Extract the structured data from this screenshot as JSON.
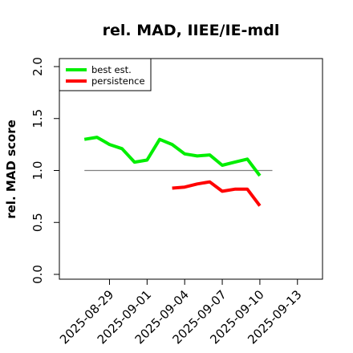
{
  "chart_data": {
    "type": "line",
    "title": "rel. MAD, IIEE/IE-mdl",
    "xlabel": "",
    "ylabel": "rel. MAD score",
    "xlim": [
      "2025-08-25",
      "2025-09-15"
    ],
    "ylim": [
      0.0,
      2.0
    ],
    "xticks": [
      "2025-08-29",
      "2025-09-01",
      "2025-09-04",
      "2025-09-07",
      "2025-09-10",
      "2025-09-13"
    ],
    "yticks": [
      "0.0",
      "0.5",
      "1.0",
      "1.5",
      "2.0"
    ],
    "grid": false,
    "legend_position": "top-left",
    "reference_line": {
      "y": 1.0,
      "x_from": "2025-08-27",
      "x_to": "2025-09-11",
      "color": "#808080"
    },
    "series": [
      {
        "name": "best est.",
        "color": "#00ee00",
        "x": [
          "2025-08-27",
          "2025-08-28",
          "2025-08-29",
          "2025-08-30",
          "2025-08-31",
          "2025-09-01",
          "2025-09-02",
          "2025-09-03",
          "2025-09-04",
          "2025-09-05",
          "2025-09-06",
          "2025-09-07",
          "2025-09-08",
          "2025-09-09",
          "2025-09-10",
          "2025-09-11"
        ],
        "y": [
          1.3,
          1.32,
          1.25,
          1.21,
          1.08,
          1.1,
          1.3,
          1.25,
          1.16,
          1.14,
          1.15,
          1.05,
          1.08,
          1.11,
          0.95,
          null
        ]
      },
      {
        "name": "persistence",
        "color": "#ff0000",
        "x": [
          "2025-09-03",
          "2025-09-04",
          "2025-09-05",
          "2025-09-06",
          "2025-09-07",
          "2025-09-08",
          "2025-09-09",
          "2025-09-10"
        ],
        "y": [
          0.83,
          0.84,
          0.87,
          0.89,
          0.8,
          0.82,
          0.82,
          0.66
        ]
      }
    ]
  }
}
